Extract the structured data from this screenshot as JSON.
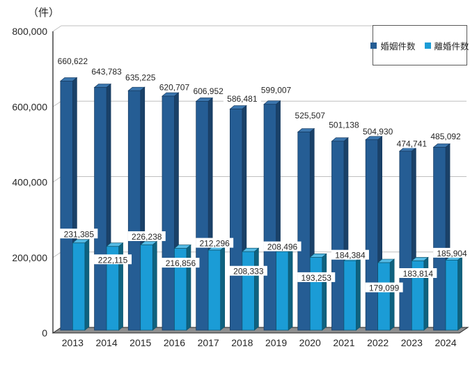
{
  "unit_label": "（件）",
  "legend": {
    "items": [
      {
        "label": "婚姻件数",
        "color": "#255D94"
      },
      {
        "label": "離婚件数",
        "color": "#1B9CD6"
      }
    ]
  },
  "chart_data": {
    "type": "bar",
    "style": "3d-clustered-column",
    "title": "",
    "xlabel": "",
    "ylabel": "（件）",
    "categories": [
      "2013",
      "2014",
      "2015",
      "2016",
      "2017",
      "2018",
      "2019",
      "2020",
      "2021",
      "2022",
      "2023",
      "2024"
    ],
    "series": [
      {
        "name": "婚姻件数",
        "values": [
          660622,
          643783,
          635225,
          620707,
          606952,
          586481,
          599007,
          525507,
          501138,
          504930,
          474741,
          485092
        ],
        "color": "#255D94",
        "color_top": "#3B76AE",
        "color_side": "#1A4168",
        "edge": "#16395E"
      },
      {
        "name": "離婚件数",
        "values": [
          231385,
          222115,
          226238,
          216856,
          212296,
          208333,
          208496,
          193253,
          184384,
          179099,
          183814,
          185904
        ],
        "color": "#1B9CD6",
        "color_top": "#55BAE4",
        "color_side": "#0F627F",
        "edge": "#0C546E"
      }
    ],
    "ylim": [
      0,
      800000
    ],
    "ytick_interval": 200000,
    "ytick_labels": [
      "0",
      "200,000",
      "400,000",
      "600,000",
      "800,000"
    ],
    "grid": true,
    "legend_position": "top-right",
    "data_labels": true,
    "label_dy": {
      "series0": [
        -29,
        -23,
        -19,
        -13,
        -15,
        -15,
        -21,
        -24,
        -24,
        -12,
        -11,
        -16
      ],
      "series1": [
        -13,
        19,
        -12,
        21,
        -10,
        28,
        -7,
        29,
        -8,
        36,
        18,
        -10
      ]
    },
    "colors_misc": {
      "gridline": "#BFBFBF",
      "axis": "#262626",
      "floor": "#8F8F8F",
      "text": "#262626",
      "label_bg": "#FFFFFF"
    }
  }
}
